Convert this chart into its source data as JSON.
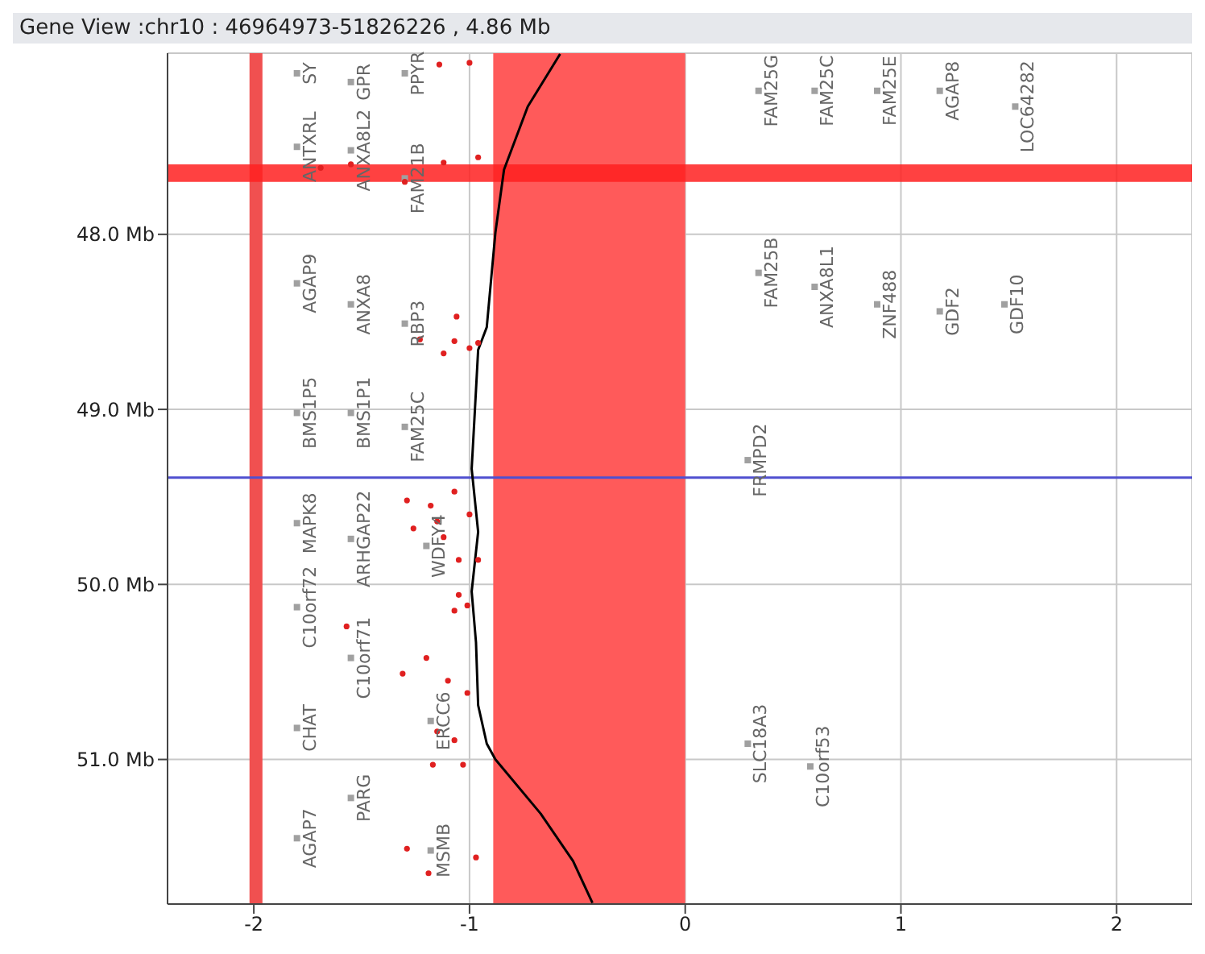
{
  "chart_data": {
    "type": "scatter",
    "title": "Gene View :chr10 : 46964973-51826226 , 4.86 Mb",
    "xlim": [
      -2.4,
      2.35
    ],
    "xticks": [
      -2,
      -1,
      0,
      1,
      2
    ],
    "ylim": [
      51.826,
      46.965
    ],
    "yticks": [
      {
        "value": 48,
        "label": "48.0 Mb"
      },
      {
        "value": 49,
        "label": "49.0 Mb"
      },
      {
        "value": 50,
        "label": "50.0 Mb"
      },
      {
        "value": 51,
        "label": "51.0 Mb"
      }
    ],
    "grid": true,
    "legend": false,
    "series": [
      {
        "type": "line",
        "color": "#000000",
        "marker": "none",
        "line_style": "solid",
        "x": [
          -0.58,
          -0.73,
          -0.84,
          -0.88,
          -0.92,
          -0.96,
          -0.97,
          -0.99,
          -0.96,
          -0.99,
          -0.97,
          -0.96,
          -0.92,
          -0.88,
          -0.67,
          -0.52,
          -0.43
        ],
        "values": [
          46.97,
          47.27,
          47.63,
          47.99,
          48.53,
          48.66,
          48.89,
          49.34,
          49.7,
          50.04,
          50.33,
          50.69,
          50.91,
          51.0,
          51.31,
          51.58,
          51.82
        ]
      },
      {
        "type": "scatter",
        "color": "#e02020",
        "marker": "circle",
        "x": [
          -1.69,
          -1.55,
          -1.3,
          -1.12,
          -1.0,
          -1.14,
          -0.96,
          -1.23,
          -1.12,
          -1.06,
          -1.07,
          -1.0,
          -0.96,
          -1.29,
          -1.26,
          -1.18,
          -1.15,
          -1.07,
          -1.12,
          -1.0,
          -1.05,
          -0.96,
          -1.05,
          -1.07,
          -1.01,
          -1.57,
          -1.2,
          -1.31,
          -1.1,
          -1.01,
          -1.15,
          -1.07,
          -1.17,
          -1.03,
          -1.29,
          -1.19,
          -0.97
        ],
        "values": [
          47.62,
          47.6,
          47.7,
          47.59,
          47.02,
          47.03,
          47.56,
          48.6,
          48.68,
          48.47,
          48.61,
          48.65,
          48.62,
          49.52,
          49.68,
          49.55,
          49.64,
          49.47,
          49.73,
          49.6,
          49.86,
          49.86,
          50.06,
          50.15,
          50.12,
          50.24,
          50.42,
          50.51,
          50.55,
          50.62,
          50.84,
          50.89,
          51.03,
          51.03,
          51.51,
          51.65,
          51.56
        ]
      },
      {
        "type": "scatter",
        "color": "#a0a0a0",
        "marker": "square",
        "x": [
          -1.8,
          -1.8,
          -1.8,
          -1.8,
          -1.8,
          -1.8,
          -1.8,
          -1.8,
          -1.55,
          -1.55,
          -1.55,
          -1.55,
          -1.55,
          -1.55,
          -1.55,
          -1.3,
          -1.3,
          -1.3,
          -1.3,
          -1.2,
          -1.18,
          -1.18,
          0.34,
          0.6,
          0.89,
          1.18,
          1.53,
          0.34,
          0.6,
          0.89,
          1.18,
          1.48,
          0.29,
          0.29,
          0.58
        ],
        "values": [
          47.08,
          47.5,
          48.28,
          49.02,
          49.65,
          50.13,
          50.82,
          51.45,
          47.13,
          47.52,
          48.4,
          49.02,
          49.74,
          50.42,
          51.22,
          47.08,
          47.68,
          48.51,
          49.1,
          49.78,
          50.78,
          51.52,
          47.18,
          47.18,
          47.18,
          47.18,
          47.27,
          48.22,
          48.3,
          48.4,
          48.44,
          48.4,
          49.29,
          50.91,
          51.04
        ],
        "value_labels": [
          "SY",
          "ANTXRL",
          "AGAP9",
          "BMS1P5",
          "MAPK8",
          "C10orf72",
          "CHAT",
          "AGAP7",
          "GPR",
          "ANXA8L2",
          "ANXA8",
          "BMS1P1",
          "ARHGAP22",
          "C10orf71",
          "PARG",
          "PPYR",
          "FAM21B",
          "RBP3",
          "FAM25C",
          "WDFY4",
          "ERCC6",
          "MSMB",
          "FAM25G",
          "FAM25C",
          "FAM25E",
          "AGAP8",
          "LOC64282",
          "FAM25B",
          "ANXA8L1",
          "ZNF488",
          "GDF2",
          "GDF10",
          "FRMPD2",
          "SLC18A3",
          "C10orf53"
        ]
      }
    ],
    "bands": [
      {
        "axis": "x",
        "from": -0.89,
        "to": 0,
        "color": "#ff5a5a"
      },
      {
        "axis": "x",
        "from": -2.02,
        "to": -1.96,
        "color": "#f05050"
      },
      {
        "axis": "y",
        "from": 47.6,
        "to": 47.7,
        "color": "#ff2020"
      }
    ],
    "ref_lines": [
      {
        "axis": "y",
        "value": 49.39,
        "color": "#5050d0",
        "line_style": "solid"
      }
    ]
  }
}
